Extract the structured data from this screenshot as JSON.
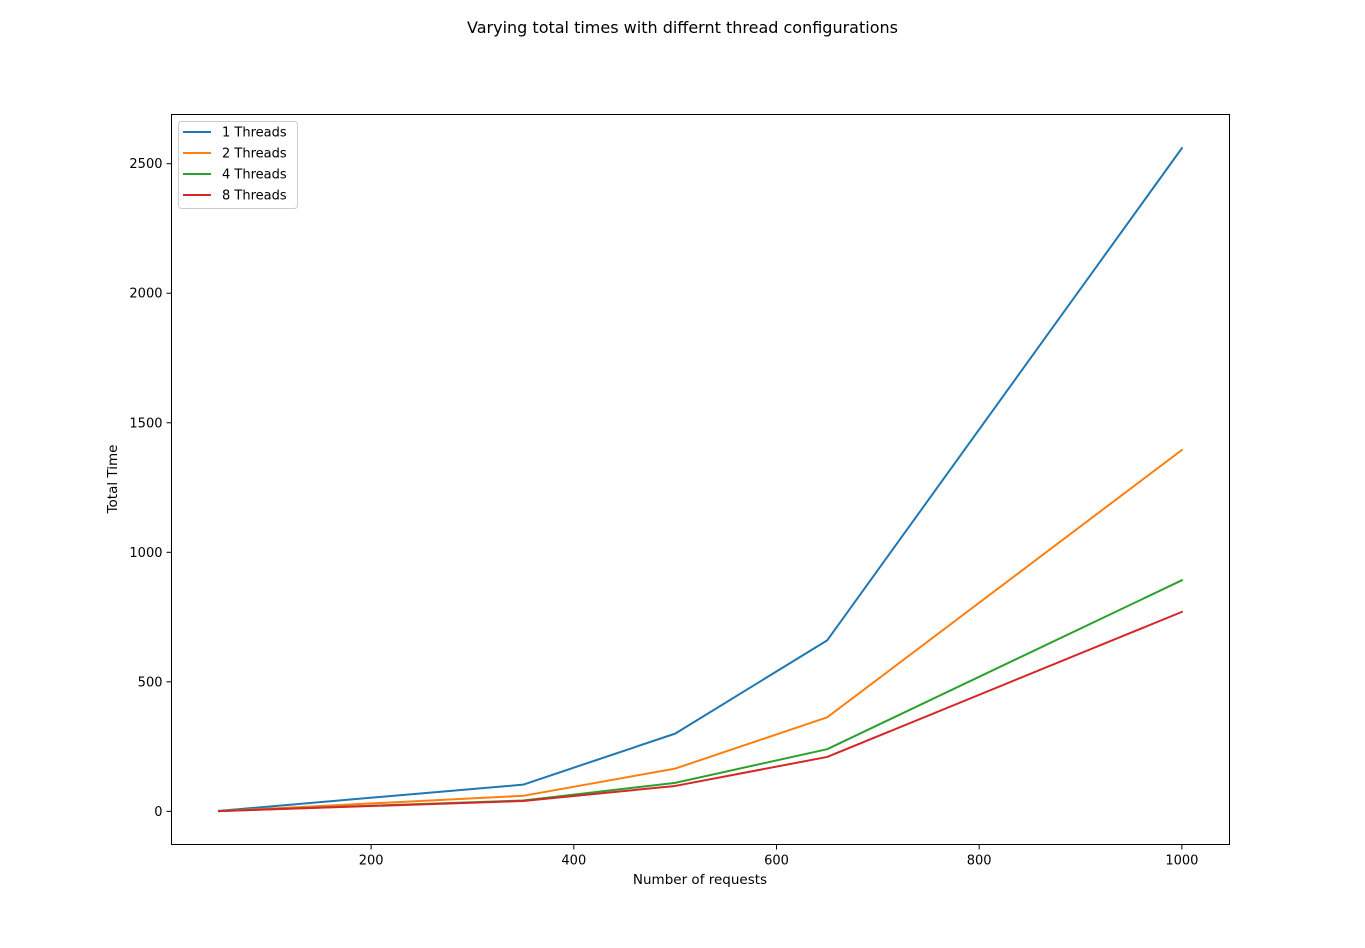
{
  "chart_data": {
    "type": "line",
    "title": "Varying total times with differnt thread configurations",
    "xlabel": "Number of requests",
    "ylabel": "Total Time",
    "x": [
      50,
      350,
      500,
      650,
      1000
    ],
    "xlim": [
      3,
      1047
    ],
    "ylim": [
      -128,
      2690
    ],
    "xticks": [
      200,
      400,
      600,
      800,
      1000
    ],
    "yticks": [
      0,
      500,
      1000,
      1500,
      2000,
      2500
    ],
    "grid": false,
    "legend_position": "upper-left",
    "series": [
      {
        "name": "1 Threads",
        "color": "#1f77b4",
        "values": [
          2,
          103,
          300,
          660,
          2560
        ]
      },
      {
        "name": "2 Threads",
        "color": "#ff7f0e",
        "values": [
          1,
          60,
          165,
          363,
          1395
        ]
      },
      {
        "name": "4 Threads",
        "color": "#2ca02c",
        "values": [
          1,
          42,
          110,
          240,
          892
        ]
      },
      {
        "name": "8 Threads",
        "color": "#d62728",
        "values": [
          1,
          40,
          98,
          210,
          770
        ]
      }
    ]
  }
}
